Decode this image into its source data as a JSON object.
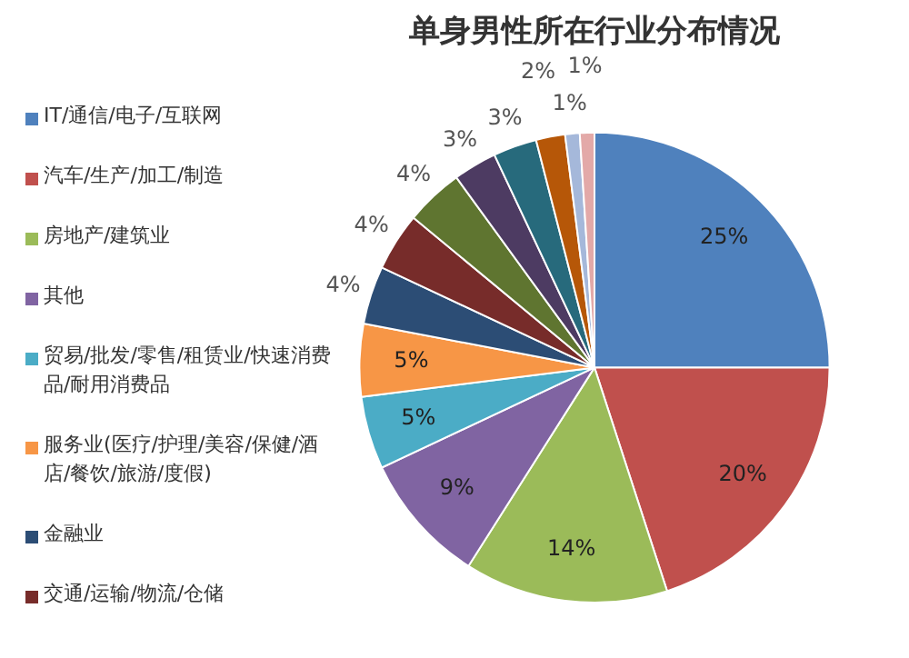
{
  "chart_data": {
    "type": "pie",
    "title": "单身男性所在行业分布情况",
    "categories": [
      "IT/通信/电子/互联网",
      "汽车/生产/加工/制造",
      "房地产/建筑业",
      "其他",
      "贸易/批发/零售/租赁业/快速消费品/耐用消费品",
      "服务业(医疗/护理/美容/保健/酒店/餐饮/旅游/度假)",
      "金融业",
      "交通/运输/物流/仓储",
      null,
      null,
      null,
      null,
      null,
      null
    ],
    "values": [
      25,
      20,
      14,
      9,
      5,
      5,
      4,
      4,
      4,
      3,
      3,
      2,
      1,
      1
    ],
    "value_labels": [
      "25%",
      "20%",
      "14%",
      "9%",
      "5%",
      "5%",
      "4%",
      "4%",
      "4%",
      "3%",
      "3%",
      "2%",
      "1%",
      "1%"
    ],
    "colors": [
      "#4f81bd",
      "#c0504d",
      "#9bbb59",
      "#8064a2",
      "#4bacc6",
      "#f79646",
      "#2c4d75",
      "#772c2a",
      "#5f7530",
      "#4d3b62",
      "#276a7c",
      "#b65708",
      "#a5b8da",
      "#e3a9a8"
    ],
    "legend": "left"
  }
}
